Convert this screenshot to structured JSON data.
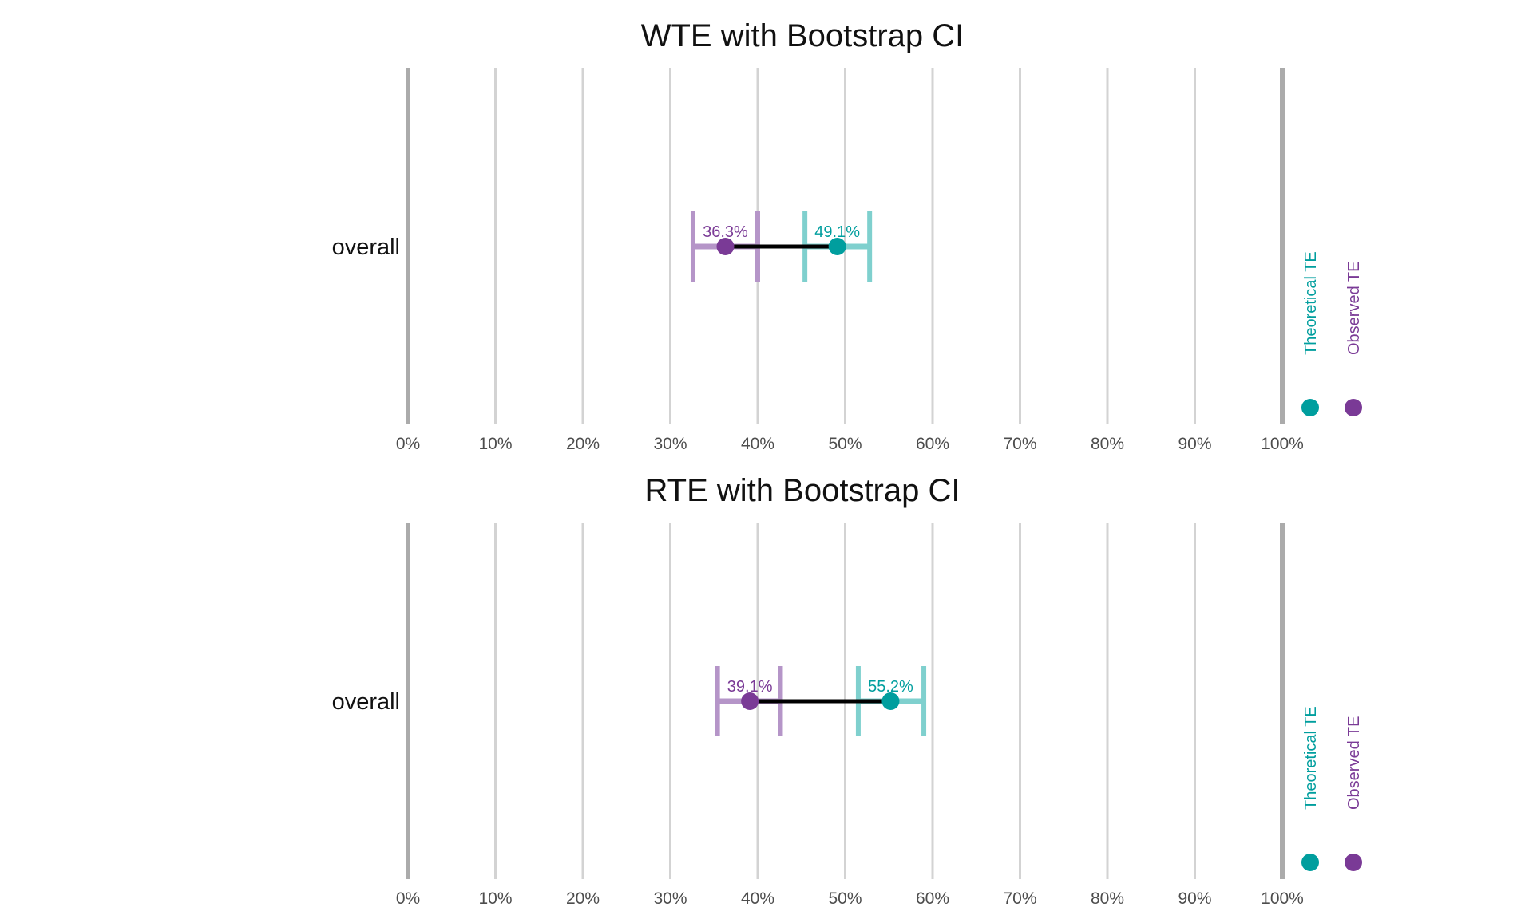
{
  "chart_data": [
    {
      "type": "dot-range",
      "title": "WTE with Bootstrap CI",
      "categories": [
        "overall"
      ],
      "xlim": [
        0,
        100
      ],
      "x_ticks": [
        0,
        10,
        20,
        30,
        40,
        50,
        60,
        70,
        80,
        90,
        100
      ],
      "x_tick_labels": [
        "0%",
        "10%",
        "20%",
        "30%",
        "40%",
        "50%",
        "60%",
        "70%",
        "80%",
        "90%",
        "100%"
      ],
      "grid": true,
      "legend_position": "right",
      "legend": [
        {
          "name": "Theoretical TE",
          "color": "#009E9E"
        },
        {
          "name": "Observed TE",
          "color": "#7A3A96"
        }
      ],
      "series": [
        {
          "name": "Observed TE",
          "color": "#7A3A96",
          "ci_color": "#B595C8",
          "value": 36.3,
          "label": "36.3%",
          "ci": [
            32.6,
            40.0
          ]
        },
        {
          "name": "Theoretical TE",
          "color": "#009E9E",
          "ci_color": "#7FD0CE",
          "value": 49.1,
          "label": "49.1%",
          "ci": [
            45.4,
            52.8
          ]
        }
      ]
    },
    {
      "type": "dot-range",
      "title": "RTE with Bootstrap CI",
      "categories": [
        "overall"
      ],
      "xlim": [
        0,
        100
      ],
      "x_ticks": [
        0,
        10,
        20,
        30,
        40,
        50,
        60,
        70,
        80,
        90,
        100
      ],
      "x_tick_labels": [
        "0%",
        "10%",
        "20%",
        "30%",
        "40%",
        "50%",
        "60%",
        "70%",
        "80%",
        "90%",
        "100%"
      ],
      "grid": true,
      "legend_position": "right",
      "legend": [
        {
          "name": "Theoretical TE",
          "color": "#009E9E"
        },
        {
          "name": "Observed TE",
          "color": "#7A3A96"
        }
      ],
      "series": [
        {
          "name": "Observed TE",
          "color": "#7A3A96",
          "ci_color": "#B595C8",
          "value": 39.1,
          "label": "39.1%",
          "ci": [
            35.4,
            42.6
          ]
        },
        {
          "name": "Theoretical TE",
          "color": "#009E9E",
          "ci_color": "#7FD0CE",
          "value": 55.2,
          "label": "55.2%",
          "ci": [
            51.5,
            59.0
          ]
        }
      ]
    }
  ]
}
